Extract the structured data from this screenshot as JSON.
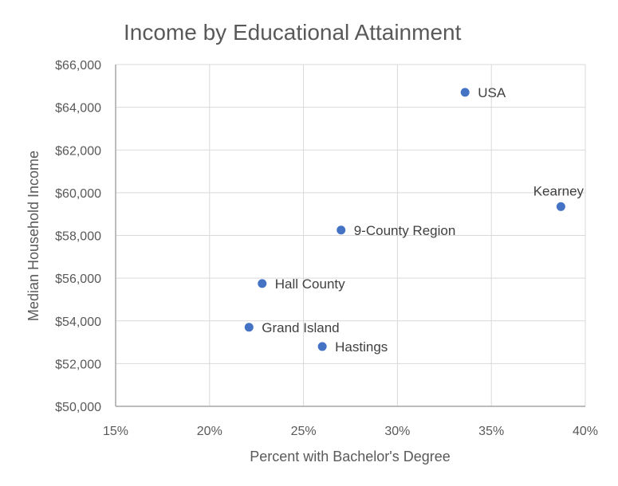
{
  "chart_data": {
    "type": "scatter",
    "title": "Income by Educational Attainment",
    "xlabel": "Percent with Bachelor's Degree",
    "ylabel": "Median Household Income",
    "xlim": [
      0.15,
      0.4
    ],
    "ylim": [
      50000,
      66000
    ],
    "x_ticks": [
      0.15,
      0.2,
      0.25,
      0.3,
      0.35,
      0.4
    ],
    "x_tick_labels": [
      "15%",
      "20%",
      "25%",
      "30%",
      "35%",
      "40%"
    ],
    "y_ticks": [
      50000,
      52000,
      54000,
      56000,
      58000,
      60000,
      62000,
      64000,
      66000
    ],
    "y_tick_labels": [
      "$50,000",
      "$52,000",
      "$54,000",
      "$56,000",
      "$58,000",
      "$60,000",
      "$62,000",
      "$64,000",
      "$66,000"
    ],
    "grid": true,
    "marker_color": "#4472c4",
    "points": [
      {
        "label": "USA",
        "x": 0.336,
        "y": 64700,
        "label_pos": "right"
      },
      {
        "label": "Kearney",
        "x": 0.387,
        "y": 59350,
        "label_pos": "above"
      },
      {
        "label": "9-County Region",
        "x": 0.27,
        "y": 58250,
        "label_pos": "right"
      },
      {
        "label": "Hall County",
        "x": 0.228,
        "y": 55750,
        "label_pos": "right"
      },
      {
        "label": "Grand Island",
        "x": 0.221,
        "y": 53700,
        "label_pos": "right"
      },
      {
        "label": "Hastings",
        "x": 0.26,
        "y": 52800,
        "label_pos": "right"
      }
    ]
  }
}
